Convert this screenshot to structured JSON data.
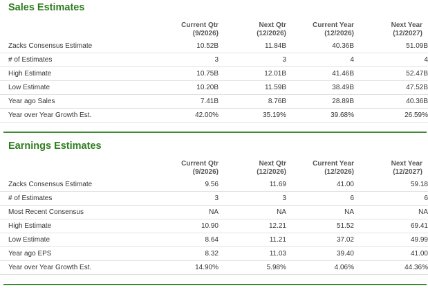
{
  "sales": {
    "title": "Sales Estimates",
    "columns": [
      {
        "line1": "Current Qtr",
        "line2": "(9/2026)"
      },
      {
        "line1": "Next Qtr",
        "line2": "(12/2026)"
      },
      {
        "line1": "Current Year",
        "line2": "(12/2026)"
      },
      {
        "line1": "Next Year",
        "line2": "(12/2027)"
      }
    ],
    "rows": [
      {
        "label": "Zacks Consensus Estimate",
        "values": [
          "10.52B",
          "11.84B",
          "40.36B",
          "51.09B"
        ]
      },
      {
        "label": "# of Estimates",
        "values": [
          "3",
          "3",
          "4",
          "4"
        ]
      },
      {
        "label": "High Estimate",
        "values": [
          "10.75B",
          "12.01B",
          "41.46B",
          "52.47B"
        ]
      },
      {
        "label": "Low Estimate",
        "values": [
          "10.20B",
          "11.59B",
          "38.49B",
          "47.52B"
        ]
      },
      {
        "label": "Year ago Sales",
        "values": [
          "7.41B",
          "8.76B",
          "28.89B",
          "40.36B"
        ]
      },
      {
        "label": "Year over Year Growth Est.",
        "values": [
          "42.00%",
          "35.19%",
          "39.68%",
          "26.59%"
        ]
      }
    ]
  },
  "earnings": {
    "title": "Earnings Estimates",
    "columns": [
      {
        "line1": "Current Qtr",
        "line2": "(9/2026)"
      },
      {
        "line1": "Next Qtr",
        "line2": "(12/2026)"
      },
      {
        "line1": "Current Year",
        "line2": "(12/2026)"
      },
      {
        "line1": "Next Year",
        "line2": "(12/2027)"
      }
    ],
    "rows": [
      {
        "label": "Zacks Consensus Estimate",
        "values": [
          "9.56",
          "11.69",
          "41.00",
          "59.18"
        ]
      },
      {
        "label": "# of Estimates",
        "values": [
          "3",
          "3",
          "6",
          "6"
        ]
      },
      {
        "label": "Most Recent Consensus",
        "values": [
          "NA",
          "NA",
          "NA",
          "NA"
        ]
      },
      {
        "label": "High Estimate",
        "values": [
          "10.90",
          "12.21",
          "51.52",
          "69.41"
        ]
      },
      {
        "label": "Low Estimate",
        "values": [
          "8.64",
          "11.21",
          "37.02",
          "49.99"
        ]
      },
      {
        "label": "Year ago EPS",
        "values": [
          "8.32",
          "11.03",
          "39.40",
          "41.00"
        ]
      },
      {
        "label": "Year over Year Growth Est.",
        "values": [
          "14.90%",
          "5.98%",
          "4.06%",
          "44.36%"
        ]
      }
    ]
  },
  "colors": {
    "title_green": "#2e7d20",
    "rule_green": "#3d8b2f",
    "row_border": "#e2e2e2"
  }
}
